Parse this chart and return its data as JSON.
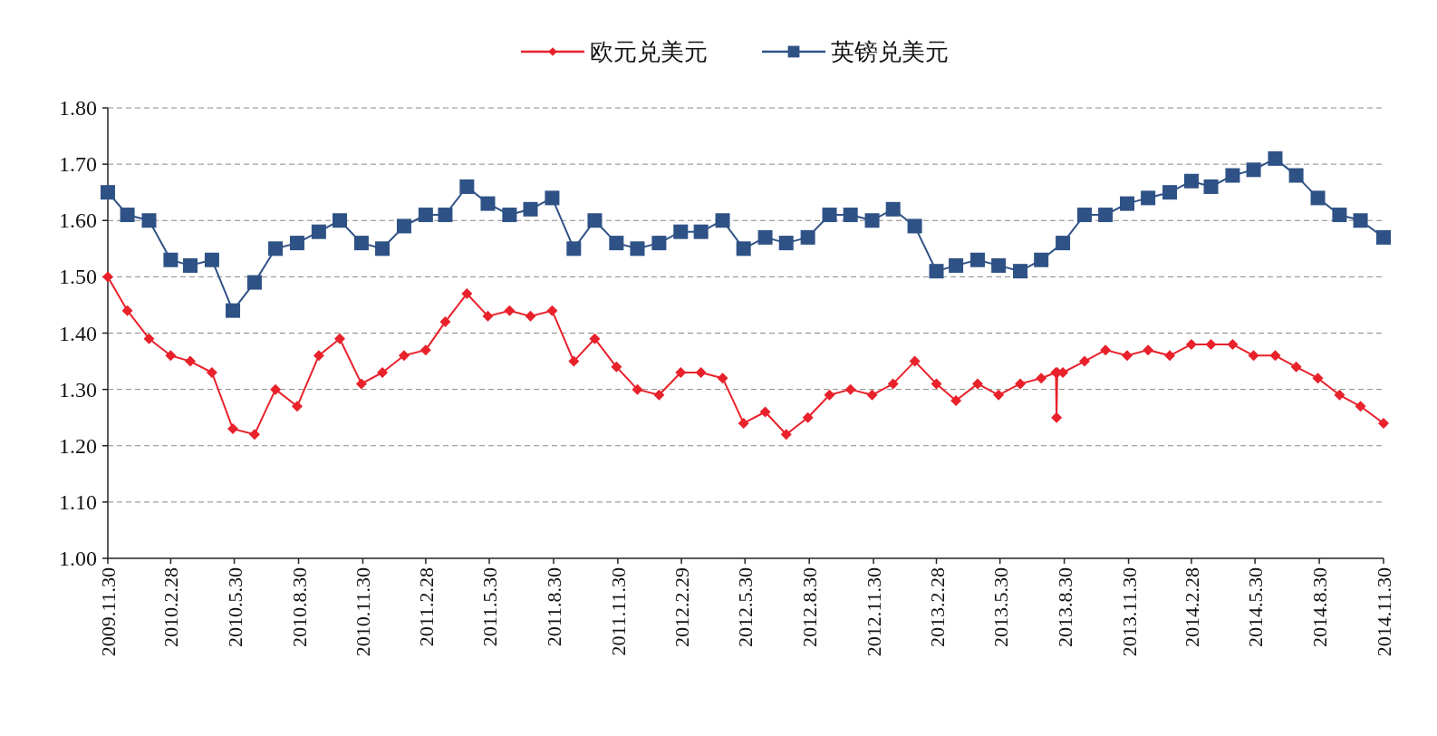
{
  "chart_data": {
    "type": "line",
    "x": [
      "2009-11-30",
      "2009-12-28",
      "2010-01-28",
      "2010-02-28",
      "2010-03-28",
      "2010-04-28",
      "2010-05-28",
      "2010-06-28",
      "2010-07-28",
      "2010-08-28",
      "2010-09-28",
      "2010-10-28",
      "2010-11-28",
      "2010-12-28",
      "2011-01-28",
      "2011-02-28",
      "2011-03-28",
      "2011-04-28",
      "2011-05-28",
      "2011-06-28",
      "2011-07-28",
      "2011-08-28",
      "2011-09-28",
      "2011-10-28",
      "2011-11-28",
      "2011-12-28",
      "2012-01-28",
      "2012-02-28",
      "2012-03-28",
      "2012-04-28",
      "2012-05-28",
      "2012-06-28",
      "2012-07-28",
      "2012-08-28",
      "2012-09-28",
      "2012-10-28",
      "2012-11-28",
      "2012-12-28",
      "2013-01-28",
      "2013-02-28",
      "2013-03-28",
      "2013-04-28",
      "2013-05-28",
      "2013-06-28",
      "2013-07-28",
      "2013-08-28",
      "2013-09-28",
      "2013-10-28",
      "2013-11-28",
      "2013-12-28",
      "2014-01-28",
      "2014-02-28",
      "2014-03-28",
      "2014-04-28",
      "2014-05-28",
      "2014-06-28",
      "2014-07-28",
      "2014-08-28",
      "2014-09-28",
      "2014-10-28",
      "2014-11-30"
    ],
    "series": [
      {
        "name": "欧元兑美元",
        "color": "#e8212b",
        "marker": "diamond",
        "x": [
          "2009-11-30",
          "2009-12-28",
          "2010-01-28",
          "2010-02-28",
          "2010-03-28",
          "2010-04-28",
          "2010-05-28",
          "2010-06-28",
          "2010-07-28",
          "2010-08-28",
          "2010-09-28",
          "2010-10-28",
          "2010-11-28",
          "2010-12-28",
          "2011-01-28",
          "2011-02-28",
          "2011-03-28",
          "2011-04-28",
          "2011-05-28",
          "2011-06-28",
          "2011-07-28",
          "2011-08-28",
          "2011-09-28",
          "2011-10-28",
          "2011-11-28",
          "2011-12-28",
          "2012-01-28",
          "2012-02-28",
          "2012-03-28",
          "2012-04-28",
          "2012-05-28",
          "2012-06-28",
          "2012-07-28",
          "2012-08-28",
          "2012-09-28",
          "2012-10-28",
          "2012-11-28",
          "2012-12-28",
          "2013-01-28",
          "2013-02-28",
          "2013-03-28",
          "2013-04-28",
          "2013-05-28",
          "2013-06-28",
          "2013-07-28",
          "2013-08-18",
          "2013-08-19",
          "2013-08-20",
          "2013-08-28",
          "2013-09-28",
          "2013-10-28",
          "2013-11-28",
          "2013-12-28",
          "2014-01-28",
          "2014-02-28",
          "2014-03-28",
          "2014-04-28",
          "2014-05-28",
          "2014-06-28",
          "2014-07-28",
          "2014-08-28",
          "2014-09-28",
          "2014-10-28",
          "2014-11-30"
        ],
        "values": [
          1.5,
          1.44,
          1.39,
          1.36,
          1.35,
          1.33,
          1.23,
          1.22,
          1.3,
          1.27,
          1.36,
          1.39,
          1.31,
          1.33,
          1.36,
          1.37,
          1.42,
          1.47,
          1.43,
          1.44,
          1.43,
          1.44,
          1.35,
          1.39,
          1.34,
          1.3,
          1.29,
          1.33,
          1.33,
          1.32,
          1.24,
          1.26,
          1.22,
          1.25,
          1.29,
          1.3,
          1.29,
          1.31,
          1.35,
          1.31,
          1.28,
          1.31,
          1.29,
          1.31,
          1.32,
          1.33,
          1.25,
          1.33,
          1.33,
          1.35,
          1.37,
          1.36,
          1.37,
          1.36,
          1.38,
          1.38,
          1.38,
          1.36,
          1.36,
          1.34,
          1.32,
          1.29,
          1.27,
          1.24
        ]
      },
      {
        "name": "英镑兑美元",
        "color": "#2f5286",
        "marker": "square",
        "values": [
          1.65,
          1.61,
          1.6,
          1.53,
          1.52,
          1.53,
          1.44,
          1.49,
          1.55,
          1.56,
          1.58,
          1.6,
          1.56,
          1.55,
          1.59,
          1.61,
          1.61,
          1.66,
          1.63,
          1.61,
          1.62,
          1.64,
          1.55,
          1.6,
          1.56,
          1.55,
          1.56,
          1.58,
          1.58,
          1.6,
          1.55,
          1.57,
          1.56,
          1.57,
          1.61,
          1.61,
          1.6,
          1.62,
          1.59,
          1.51,
          1.52,
          1.53,
          1.52,
          1.51,
          1.53,
          1.56,
          1.61,
          1.61,
          1.63,
          1.64,
          1.65,
          1.67,
          1.66,
          1.68,
          1.69,
          1.71,
          1.68,
          1.64,
          1.61,
          1.6,
          1.57
        ]
      }
    ],
    "xlim": [
      "2009-11-30",
      "2014-11-30"
    ],
    "xticks": [
      {
        "value": "2009-11-30",
        "label": "2009.11.30"
      },
      {
        "value": "2010-02-28",
        "label": "2010.2.28"
      },
      {
        "value": "2010-05-30",
        "label": "2010.5.30"
      },
      {
        "value": "2010-08-30",
        "label": "2010.8.30"
      },
      {
        "value": "2010-11-30",
        "label": "2010.11.30"
      },
      {
        "value": "2011-02-28",
        "label": "2011.2.28"
      },
      {
        "value": "2011-05-30",
        "label": "2011.5.30"
      },
      {
        "value": "2011-08-30",
        "label": "2011.8.30"
      },
      {
        "value": "2011-11-30",
        "label": "2011.11.30"
      },
      {
        "value": "2012-02-29",
        "label": "2012.2.29"
      },
      {
        "value": "2012-05-30",
        "label": "2012.5.30"
      },
      {
        "value": "2012-08-30",
        "label": "2012.8.30"
      },
      {
        "value": "2012-11-30",
        "label": "2012.11.30"
      },
      {
        "value": "2013-02-28",
        "label": "2013.2.28"
      },
      {
        "value": "2013-05-30",
        "label": "2013.5.30"
      },
      {
        "value": "2013-08-30",
        "label": "2013.8.30"
      },
      {
        "value": "2013-11-30",
        "label": "2013.11.30"
      },
      {
        "value": "2014-02-28",
        "label": "2014.2.28"
      },
      {
        "value": "2014-05-30",
        "label": "2014.5.30"
      },
      {
        "value": "2014-08-30",
        "label": "2014.8.30"
      },
      {
        "value": "2014-11-30",
        "label": "2014.11.30"
      }
    ],
    "ylim": [
      1.0,
      1.8
    ],
    "yticks": [
      {
        "value": 1.0,
        "label": "1.00"
      },
      {
        "value": 1.1,
        "label": "1.10"
      },
      {
        "value": 1.2,
        "label": "1.20"
      },
      {
        "value": 1.3,
        "label": "1.30"
      },
      {
        "value": 1.4,
        "label": "1.40"
      },
      {
        "value": 1.5,
        "label": "1.50"
      },
      {
        "value": 1.6,
        "label": "1.60"
      },
      {
        "value": 1.7,
        "label": "1.70"
      },
      {
        "value": 1.8,
        "label": "1.80"
      }
    ],
    "grid": "y",
    "legend": "top",
    "line_style": "solid"
  }
}
